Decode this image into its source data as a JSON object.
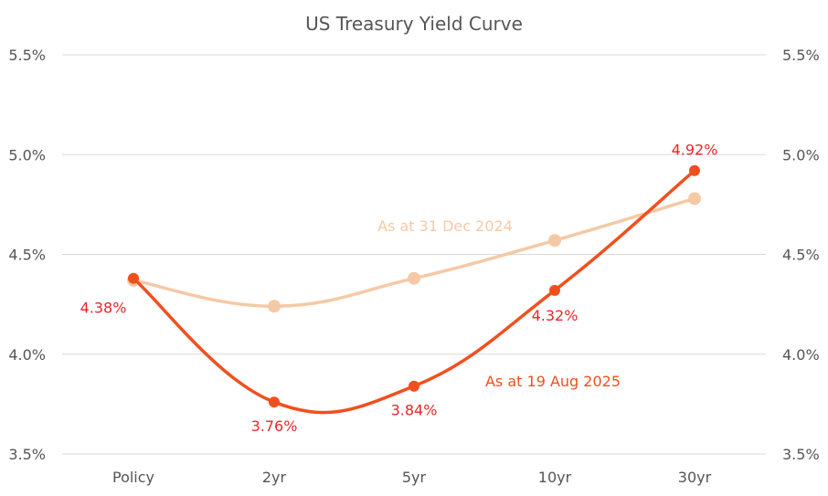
{
  "chart_data": {
    "type": "line",
    "title": "US Treasury Yield Curve",
    "categories": [
      "Policy",
      "2yr",
      "5yr",
      "10yr",
      "30yr"
    ],
    "ylim": [
      3.5,
      5.5
    ],
    "yticks": [
      "3.5%",
      "4.0%",
      "4.5%",
      "5.0%",
      "5.5%"
    ],
    "yticks_values": [
      3.5,
      4.0,
      4.5,
      5.0,
      5.5
    ],
    "grid": true,
    "series": [
      {
        "name": "As at 31 Dec 2024",
        "values": [
          4.37,
          4.24,
          4.38,
          4.57,
          4.78
        ],
        "color": "#f5c9a6",
        "labels": [
          "",
          "",
          "",
          "",
          ""
        ]
      },
      {
        "name": "As at 19 Aug 2025",
        "values": [
          4.38,
          3.76,
          3.84,
          4.32,
          4.92
        ],
        "color": "#f0501e",
        "labels": [
          "4.38%",
          "3.76%",
          "3.84%",
          "4.32%",
          "4.92%"
        ]
      }
    ],
    "colors": {
      "label_red": "#e8262a",
      "text_gray": "#555555",
      "grid": "#d9d9d9"
    }
  }
}
